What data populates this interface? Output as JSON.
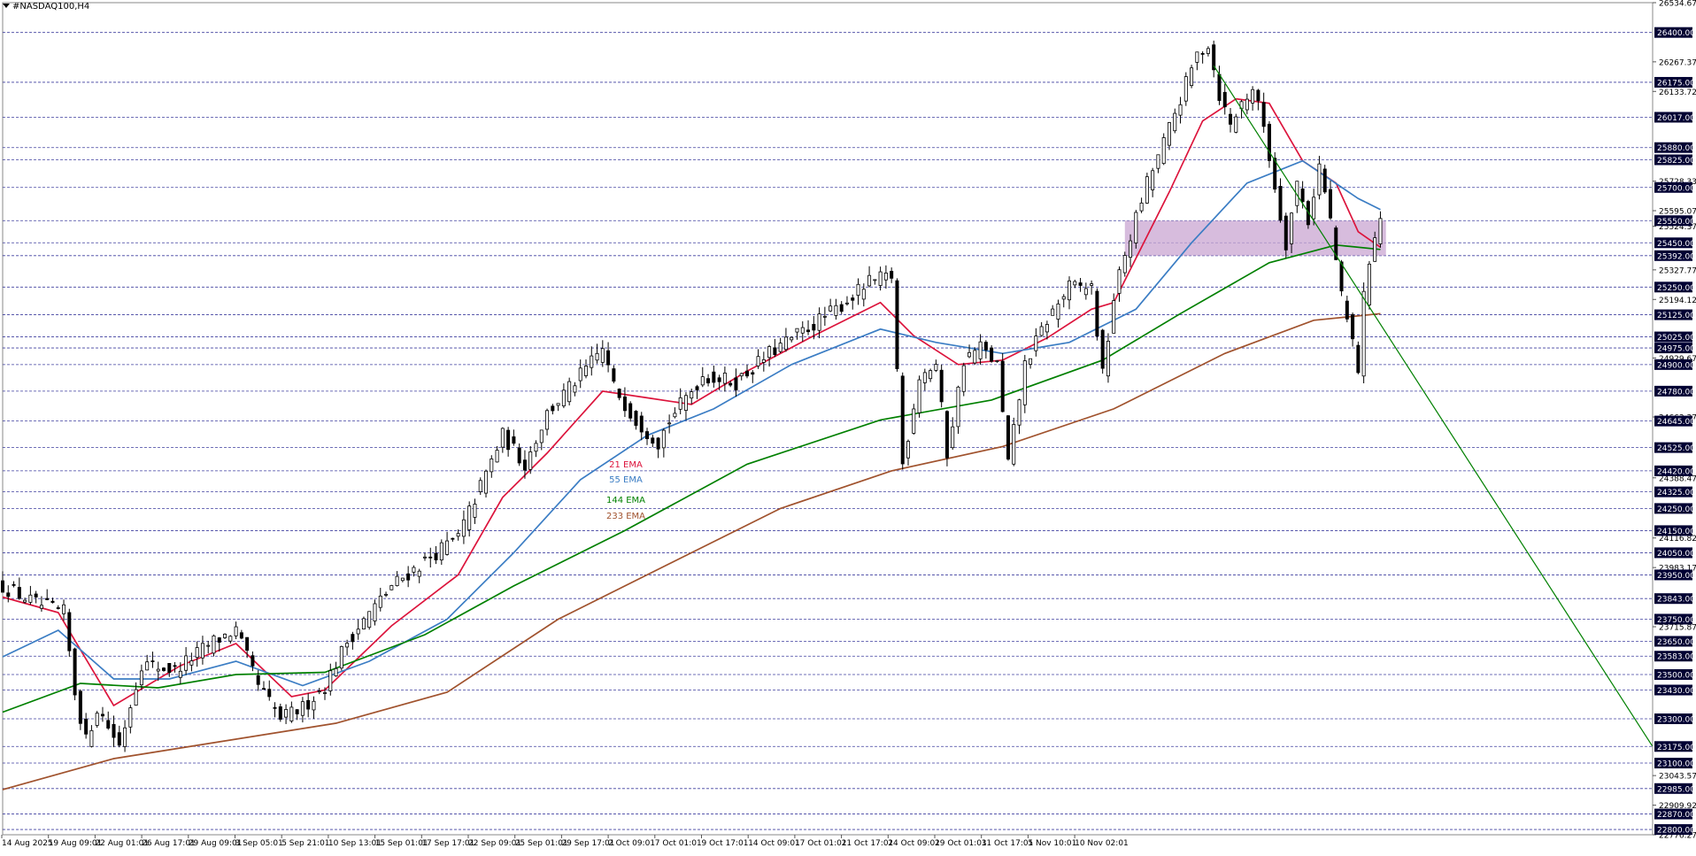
{
  "window": {
    "symbol_label": "#NASDAQ100,H4"
  },
  "colors": {
    "background": "#ffffff",
    "grid": "#000080",
    "candle_up": "#000000",
    "candle_down": "#000000",
    "ema21": "#dc143c",
    "ema55": "#3b7dc4",
    "ema144": "#008000",
    "ema233": "#a0522d",
    "trendline": "#008000",
    "zone": "#c9a6d1",
    "badge_bg": "#000033",
    "badge_text": "#ffffff"
  },
  "chart_data": {
    "type": "candlestick",
    "symbol": "#NASDAQ100",
    "timeframe": "H4",
    "y_range": [
      22776.27,
      26534.67
    ],
    "price_scale_labels": [
      26534.67,
      26267.37,
      26133.72,
      25728.33,
      25595.07,
      25524.37,
      25327.77,
      25194.12,
      24929.67,
      24663.37,
      24388.47,
      24116.82,
      23983.17,
      23715.87,
      23043.57,
      22909.92,
      22776.27
    ],
    "horizontal_levels": [
      26400.0,
      26175.0,
      26017.0,
      25880.0,
      25825.0,
      25700.0,
      25550.0,
      25450.0,
      25392.0,
      25250.0,
      25125.0,
      25025.0,
      24975.0,
      24900.0,
      24780.0,
      24645.0,
      24525.0,
      24420.0,
      24325.0,
      24250.0,
      24150.0,
      24050.0,
      23950.0,
      23843.0,
      23750.0,
      23650.0,
      23583.0,
      23500.0,
      23430.0,
      23300.0,
      23175.0,
      23100.0,
      22985.0,
      22870.0,
      22800.0
    ],
    "x_labels": [
      "14 Aug 2025",
      "19 Aug 09:01",
      "22 Aug 01:01",
      "26 Aug 17:01",
      "29 Aug 09:01",
      "3 Sep 05:01",
      "5 Sep 21:01",
      "10 Sep 13:01",
      "15 Sep 01:01",
      "17 Sep 17:01",
      "22 Sep 09:01",
      "25 Sep 01:01",
      "29 Sep 17:01",
      "2 Oct 09:01",
      "7 Oct 01:01",
      "9 Oct 17:01",
      "14 Oct 09:01",
      "17 Oct 01:01",
      "21 Oct 17:01",
      "24 Oct 09:01",
      "29 Oct 01:01",
      "31 Oct 17:01",
      "5 Nov 10:01",
      "10 Nov 02:01"
    ],
    "price_path": [
      {
        "x": 0,
        "y": 23900
      },
      {
        "x": 6,
        "y": 23820
      },
      {
        "x": 11,
        "y": 23780
      },
      {
        "x": 13,
        "y": 23420
      },
      {
        "x": 15,
        "y": 23200
      },
      {
        "x": 17,
        "y": 23350
      },
      {
        "x": 21,
        "y": 23180
      },
      {
        "x": 25,
        "y": 23550
      },
      {
        "x": 31,
        "y": 23520
      },
      {
        "x": 38,
        "y": 23650
      },
      {
        "x": 42,
        "y": 23700
      },
      {
        "x": 46,
        "y": 23450
      },
      {
        "x": 50,
        "y": 23300
      },
      {
        "x": 54,
        "y": 23350
      },
      {
        "x": 58,
        "y": 23450
      },
      {
        "x": 62,
        "y": 23650
      },
      {
        "x": 70,
        "y": 23900
      },
      {
        "x": 78,
        "y": 24050
      },
      {
        "x": 82,
        "y": 24120
      },
      {
        "x": 86,
        "y": 24350
      },
      {
        "x": 90,
        "y": 24580
      },
      {
        "x": 94,
        "y": 24450
      },
      {
        "x": 98,
        "y": 24680
      },
      {
        "x": 104,
        "y": 24850
      },
      {
        "x": 108,
        "y": 24970
      },
      {
        "x": 110,
        "y": 24800
      },
      {
        "x": 114,
        "y": 24650
      },
      {
        "x": 118,
        "y": 24550
      },
      {
        "x": 120,
        "y": 24650
      },
      {
        "x": 126,
        "y": 24850
      },
      {
        "x": 132,
        "y": 24820
      },
      {
        "x": 138,
        "y": 24950
      },
      {
        "x": 144,
        "y": 25050
      },
      {
        "x": 150,
        "y": 25150
      },
      {
        "x": 156,
        "y": 25270
      },
      {
        "x": 160,
        "y": 25300
      },
      {
        "x": 162,
        "y": 24450
      },
      {
        "x": 165,
        "y": 24850
      },
      {
        "x": 168,
        "y": 24900
      },
      {
        "x": 170,
        "y": 24500
      },
      {
        "x": 173,
        "y": 24920
      },
      {
        "x": 176,
        "y": 24980
      },
      {
        "x": 179,
        "y": 24900
      },
      {
        "x": 181,
        "y": 24450
      },
      {
        "x": 184,
        "y": 24900
      },
      {
        "x": 188,
        "y": 25100
      },
      {
        "x": 192,
        "y": 25250
      },
      {
        "x": 196,
        "y": 25250
      },
      {
        "x": 198,
        "y": 24850
      },
      {
        "x": 200,
        "y": 25200
      },
      {
        "x": 202,
        "y": 25400
      },
      {
        "x": 204,
        "y": 25560
      },
      {
        "x": 206,
        "y": 25720
      },
      {
        "x": 209,
        "y": 25900
      },
      {
        "x": 212,
        "y": 26100
      },
      {
        "x": 215,
        "y": 26300
      },
      {
        "x": 217,
        "y": 26350
      },
      {
        "x": 219,
        "y": 26120
      },
      {
        "x": 221,
        "y": 25980
      },
      {
        "x": 223,
        "y": 26080
      },
      {
        "x": 225,
        "y": 26150
      },
      {
        "x": 227,
        "y": 25980
      },
      {
        "x": 229,
        "y": 25700
      },
      {
        "x": 231,
        "y": 25450
      },
      {
        "x": 233,
        "y": 25720
      },
      {
        "x": 235,
        "y": 25550
      },
      {
        "x": 237,
        "y": 25800
      },
      {
        "x": 239,
        "y": 25550
      },
      {
        "x": 241,
        "y": 25200
      },
      {
        "x": 242,
        "y": 25100
      },
      {
        "x": 243,
        "y": 25000
      },
      {
        "x": 244,
        "y": 24880
      },
      {
        "x": 245,
        "y": 25200
      },
      {
        "x": 246,
        "y": 25380
      },
      {
        "x": 247,
        "y": 25480
      },
      {
        "x": 248,
        "y": 25560
      }
    ],
    "series": [
      {
        "name": "21 EMA",
        "points": [
          {
            "x": 0,
            "y": 23850
          },
          {
            "x": 10,
            "y": 23780
          },
          {
            "x": 20,
            "y": 23360
          },
          {
            "x": 32,
            "y": 23540
          },
          {
            "x": 42,
            "y": 23640
          },
          {
            "x": 52,
            "y": 23400
          },
          {
            "x": 58,
            "y": 23430
          },
          {
            "x": 70,
            "y": 23720
          },
          {
            "x": 82,
            "y": 23950
          },
          {
            "x": 90,
            "y": 24300
          },
          {
            "x": 98,
            "y": 24500
          },
          {
            "x": 108,
            "y": 24780
          },
          {
            "x": 116,
            "y": 24750
          },
          {
            "x": 124,
            "y": 24720
          },
          {
            "x": 134,
            "y": 24870
          },
          {
            "x": 146,
            "y": 25030
          },
          {
            "x": 158,
            "y": 25180
          },
          {
            "x": 164,
            "y": 25030
          },
          {
            "x": 172,
            "y": 24900
          },
          {
            "x": 180,
            "y": 24920
          },
          {
            "x": 188,
            "y": 25020
          },
          {
            "x": 196,
            "y": 25150
          },
          {
            "x": 200,
            "y": 25180
          },
          {
            "x": 204,
            "y": 25380
          },
          {
            "x": 210,
            "y": 25680
          },
          {
            "x": 216,
            "y": 26000
          },
          {
            "x": 222,
            "y": 26100
          },
          {
            "x": 228,
            "y": 26080
          },
          {
            "x": 234,
            "y": 25820
          },
          {
            "x": 240,
            "y": 25720
          },
          {
            "x": 244,
            "y": 25500
          },
          {
            "x": 248,
            "y": 25430
          }
        ]
      },
      {
        "name": "55 EMA",
        "points": [
          {
            "x": 0,
            "y": 23580
          },
          {
            "x": 10,
            "y": 23700
          },
          {
            "x": 20,
            "y": 23480
          },
          {
            "x": 30,
            "y": 23480
          },
          {
            "x": 42,
            "y": 23560
          },
          {
            "x": 54,
            "y": 23450
          },
          {
            "x": 66,
            "y": 23560
          },
          {
            "x": 80,
            "y": 23750
          },
          {
            "x": 92,
            "y": 24050
          },
          {
            "x": 104,
            "y": 24380
          },
          {
            "x": 116,
            "y": 24580
          },
          {
            "x": 128,
            "y": 24700
          },
          {
            "x": 142,
            "y": 24900
          },
          {
            "x": 158,
            "y": 25060
          },
          {
            "x": 168,
            "y": 25000
          },
          {
            "x": 180,
            "y": 24950
          },
          {
            "x": 192,
            "y": 25000
          },
          {
            "x": 204,
            "y": 25150
          },
          {
            "x": 214,
            "y": 25450
          },
          {
            "x": 224,
            "y": 25720
          },
          {
            "x": 234,
            "y": 25820
          },
          {
            "x": 244,
            "y": 25650
          },
          {
            "x": 248,
            "y": 25600
          }
        ]
      },
      {
        "name": "144 EMA",
        "points": [
          {
            "x": 0,
            "y": 23330
          },
          {
            "x": 14,
            "y": 23460
          },
          {
            "x": 28,
            "y": 23440
          },
          {
            "x": 42,
            "y": 23500
          },
          {
            "x": 58,
            "y": 23510
          },
          {
            "x": 76,
            "y": 23680
          },
          {
            "x": 92,
            "y": 23900
          },
          {
            "x": 112,
            "y": 24150
          },
          {
            "x": 134,
            "y": 24450
          },
          {
            "x": 158,
            "y": 24650
          },
          {
            "x": 178,
            "y": 24740
          },
          {
            "x": 198,
            "y": 24920
          },
          {
            "x": 212,
            "y": 25130
          },
          {
            "x": 228,
            "y": 25360
          },
          {
            "x": 240,
            "y": 25440
          },
          {
            "x": 248,
            "y": 25420
          }
        ]
      },
      {
        "name": "233 EMA",
        "points": [
          {
            "x": 0,
            "y": 22980
          },
          {
            "x": 20,
            "y": 23120
          },
          {
            "x": 40,
            "y": 23200
          },
          {
            "x": 60,
            "y": 23280
          },
          {
            "x": 80,
            "y": 23420
          },
          {
            "x": 100,
            "y": 23750
          },
          {
            "x": 120,
            "y": 24000
          },
          {
            "x": 140,
            "y": 24250
          },
          {
            "x": 160,
            "y": 24420
          },
          {
            "x": 180,
            "y": 24530
          },
          {
            "x": 200,
            "y": 24700
          },
          {
            "x": 220,
            "y": 24950
          },
          {
            "x": 236,
            "y": 25100
          },
          {
            "x": 248,
            "y": 25130
          }
        ]
      }
    ],
    "trendline": {
      "from": {
        "x": 218,
        "y": 26250
      },
      "to": {
        "x": 297,
        "y": 23175
      }
    },
    "zone": {
      "x_from": 202,
      "x_to": 249,
      "y_from": 25392,
      "y_to": 25550
    },
    "legend": [
      "21 EMA",
      "55 EMA",
      "144 EMA",
      "233 EMA"
    ],
    "legend_placement": "center",
    "grid": "horizontal dashed",
    "ylabel": "",
    "xlabel": "",
    "title": ""
  }
}
